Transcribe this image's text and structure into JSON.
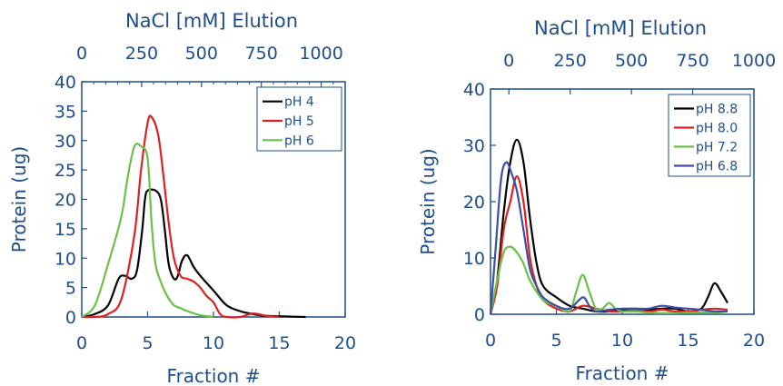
{
  "chart_data": [
    {
      "type": "line",
      "title": "",
      "xlabel": "Fraction #",
      "ylabel": "Protein (ug)",
      "top_xlabel": "NaCl [mM] Elution",
      "xlim": [
        0,
        20
      ],
      "ylim": [
        0,
        40
      ],
      "xticks": [
        "0",
        "5",
        "10",
        "15",
        "20"
      ],
      "yticks": [
        "0",
        "5",
        "10",
        "15",
        "20",
        "25",
        "30",
        "35",
        "40"
      ],
      "top_ticks": [
        "0",
        "250",
        "500",
        "750",
        "1000"
      ],
      "top_tick_values": [
        0,
        250,
        500,
        750,
        1000
      ],
      "top_lim": [
        0,
        1100
      ],
      "grid": false,
      "legend_position": "top-right",
      "series": [
        {
          "name": "pH 4",
          "color": "#000000",
          "points": [
            [
              0,
              0
            ],
            [
              1,
              0.5
            ],
            [
              2,
              2
            ],
            [
              2.8,
              6.5
            ],
            [
              3.3,
              7
            ],
            [
              3.8,
              6.5
            ],
            [
              4.2,
              8
            ],
            [
              4.6,
              15
            ],
            [
              4.8,
              20
            ],
            [
              5.0,
              21.5
            ],
            [
              5.6,
              21.5
            ],
            [
              6.0,
              20
            ],
            [
              6.3,
              15
            ],
            [
              6.6,
              9
            ],
            [
              7.0,
              6.5
            ],
            [
              7.3,
              7
            ],
            [
              7.6,
              9.5
            ],
            [
              8.0,
              10.5
            ],
            [
              8.5,
              8.5
            ],
            [
              9.0,
              7
            ],
            [
              10,
              4.5
            ],
            [
              11,
              2
            ],
            [
              12,
              1
            ],
            [
              13,
              0.5
            ],
            [
              14,
              0.2
            ],
            [
              17,
              0
            ]
          ]
        },
        {
          "name": "pH 5",
          "color": "#e02020",
          "points": [
            [
              0,
              0
            ],
            [
              1,
              0
            ],
            [
              2,
              0.5
            ],
            [
              3,
              3
            ],
            [
              4,
              14
            ],
            [
              4.5,
              25
            ],
            [
              5,
              33
            ],
            [
              5.3,
              34
            ],
            [
              5.8,
              31
            ],
            [
              6.2,
              24
            ],
            [
              6.6,
              16
            ],
            [
              7,
              10
            ],
            [
              7.5,
              7
            ],
            [
              8,
              6.5
            ],
            [
              8.5,
              6
            ],
            [
              9,
              5
            ],
            [
              9.5,
              3.5
            ],
            [
              10,
              2.5
            ],
            [
              10.5,
              0.5
            ],
            [
              11,
              0
            ],
            [
              12,
              0
            ],
            [
              13,
              0.6
            ],
            [
              14,
              0.2
            ],
            [
              15,
              0
            ]
          ]
        },
        {
          "name": "pH 6",
          "color": "#6cc04a",
          "points": [
            [
              0,
              0
            ],
            [
              1,
              2
            ],
            [
              2,
              9
            ],
            [
              3,
              17
            ],
            [
              3.5,
              24
            ],
            [
              4,
              29
            ],
            [
              4.5,
              29
            ],
            [
              5,
              27
            ],
            [
              5.3,
              16
            ],
            [
              5.6,
              9
            ],
            [
              6,
              6
            ],
            [
              6.5,
              3.5
            ],
            [
              7,
              2
            ],
            [
              7.5,
              1.5
            ],
            [
              8,
              1
            ],
            [
              9,
              0.3
            ],
            [
              10,
              0
            ]
          ]
        }
      ]
    },
    {
      "type": "line",
      "title": "",
      "xlabel": "Fraction #",
      "ylabel": "Protein (ug)",
      "top_xlabel": "NaCl [mM] Elution",
      "xlim": [
        0,
        20
      ],
      "ylim": [
        0,
        40
      ],
      "xticks": [
        "0",
        "5",
        "10",
        "15",
        "20"
      ],
      "yticks": [
        "0",
        "10",
        "20",
        "30",
        "40"
      ],
      "top_ticks": [
        "0",
        "250",
        "500",
        "750",
        "1000"
      ],
      "top_tick_values": [
        0,
        250,
        500,
        750,
        1000
      ],
      "top_lim": [
        -75,
        1000
      ],
      "grid": false,
      "legend_position": "top-right",
      "series": [
        {
          "name": "pH 8.8",
          "color": "#000000",
          "points": [
            [
              0,
              0
            ],
            [
              0.5,
              6
            ],
            [
              1,
              18
            ],
            [
              1.5,
              27
            ],
            [
              2,
              31
            ],
            [
              2.5,
              27
            ],
            [
              3,
              17
            ],
            [
              3.5,
              9
            ],
            [
              4,
              5
            ],
            [
              5,
              3
            ],
            [
              6,
              1.5
            ],
            [
              7,
              1
            ],
            [
              8,
              0.5
            ],
            [
              9,
              0.5
            ],
            [
              10,
              0.8
            ],
            [
              11,
              1
            ],
            [
              12,
              0.8
            ],
            [
              13,
              1
            ],
            [
              14,
              1
            ],
            [
              15,
              0.5
            ],
            [
              16,
              1
            ],
            [
              16.5,
              3
            ],
            [
              17,
              5.5
            ],
            [
              17.5,
              4
            ],
            [
              18,
              2
            ]
          ]
        },
        {
          "name": "pH 8.0",
          "color": "#e02020",
          "points": [
            [
              0,
              0
            ],
            [
              0.5,
              5
            ],
            [
              1,
              15
            ],
            [
              1.5,
              20
            ],
            [
              2,
              24.5
            ],
            [
              2.5,
              20
            ],
            [
              3,
              10
            ],
            [
              3.5,
              5
            ],
            [
              4,
              2.5
            ],
            [
              5,
              1
            ],
            [
              6,
              0.5
            ],
            [
              7,
              1.5
            ],
            [
              8,
              1
            ],
            [
              9,
              0.5
            ],
            [
              10,
              0.5
            ],
            [
              11,
              0.8
            ],
            [
              12,
              0.5
            ],
            [
              13,
              0.8
            ],
            [
              14,
              0.5
            ],
            [
              15,
              0.5
            ],
            [
              16,
              0.8
            ],
            [
              17,
              1
            ],
            [
              18,
              0.8
            ]
          ]
        },
        {
          "name": "pH 7.2",
          "color": "#6cc04a",
          "points": [
            [
              0,
              0
            ],
            [
              0.5,
              6
            ],
            [
              1,
              11
            ],
            [
              1.5,
              12
            ],
            [
              2,
              11
            ],
            [
              2.5,
              9
            ],
            [
              3,
              6
            ],
            [
              4,
              2.5
            ],
            [
              5,
              1.5
            ],
            [
              6,
              0.5
            ],
            [
              6.5,
              4
            ],
            [
              7,
              7
            ],
            [
              7.5,
              4
            ],
            [
              8,
              1
            ],
            [
              8.5,
              1
            ],
            [
              9,
              2
            ],
            [
              9.5,
              1
            ],
            [
              10,
              0.5
            ],
            [
              11,
              0.5
            ],
            [
              12,
              0.3
            ],
            [
              13,
              0.2
            ],
            [
              14,
              0.2
            ],
            [
              15,
              0.3
            ],
            [
              16,
              0.3
            ],
            [
              17,
              0.3
            ],
            [
              18,
              0.5
            ]
          ]
        },
        {
          "name": "pH 6.8",
          "color": "#3a4fa5",
          "points": [
            [
              0,
              0
            ],
            [
              0.4,
              12
            ],
            [
              0.8,
              24
            ],
            [
              1.2,
              27
            ],
            [
              1.6,
              25
            ],
            [
              2,
              22
            ],
            [
              2.5,
              15
            ],
            [
              3,
              8
            ],
            [
              3.5,
              5
            ],
            [
              4,
              3
            ],
            [
              5,
              1.5
            ],
            [
              6,
              1
            ],
            [
              7,
              3
            ],
            [
              7.5,
              1.5
            ],
            [
              8,
              0.5
            ],
            [
              9,
              0.8
            ],
            [
              10,
              1
            ],
            [
              11,
              1
            ],
            [
              12,
              1
            ],
            [
              13,
              1.5
            ],
            [
              14,
              1.2
            ],
            [
              15,
              1
            ],
            [
              16,
              0.8
            ],
            [
              17,
              0.5
            ],
            [
              18,
              0.5
            ]
          ]
        }
      ]
    }
  ]
}
